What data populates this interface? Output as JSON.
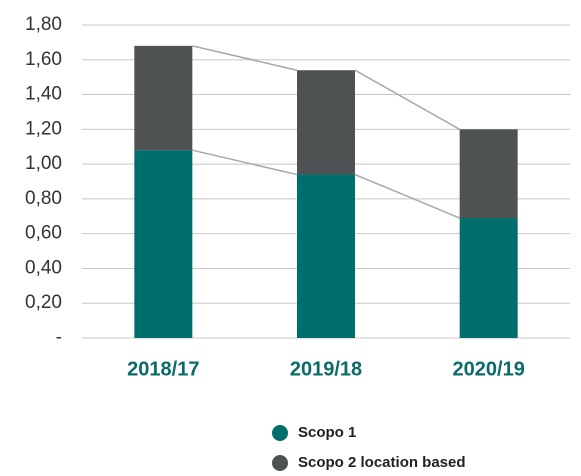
{
  "chart_data": {
    "type": "stacked_bar",
    "categories": [
      "2018/17",
      "2019/18",
      "2020/19"
    ],
    "series": [
      {
        "name": "Scopo 1",
        "color": "#006f6c",
        "values": [
          1.08,
          0.94,
          0.69
        ]
      },
      {
        "name": "Scopo 2 location based",
        "color": "#4f5253",
        "values": [
          0.6,
          0.6,
          0.51
        ]
      }
    ],
    "ylim": [
      0,
      1.8
    ],
    "yticks": [
      {
        "value": 0,
        "label": "-"
      },
      {
        "value": 0.2,
        "label": "0,20"
      },
      {
        "value": 0.4,
        "label": "0,40"
      },
      {
        "value": 0.6,
        "label": "0,60"
      },
      {
        "value": 0.8,
        "label": "0,80"
      },
      {
        "value": 1.0,
        "label": "1,00"
      },
      {
        "value": 1.2,
        "label": "1,20"
      },
      {
        "value": 1.4,
        "label": "1,40"
      },
      {
        "value": 1.6,
        "label": "1,60"
      },
      {
        "value": 1.8,
        "label": "1,80"
      }
    ],
    "grid": true
  }
}
